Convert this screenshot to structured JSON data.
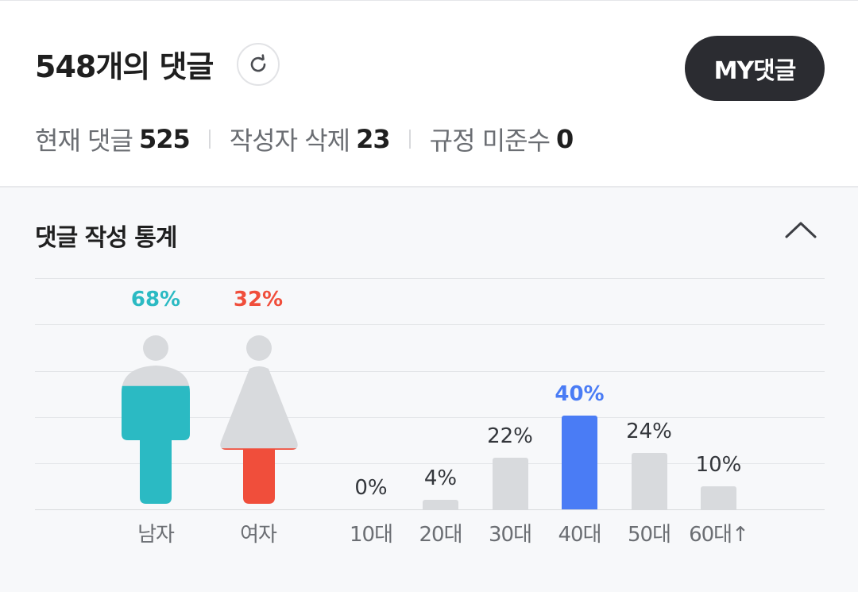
{
  "header": {
    "title": "548개의 댓글",
    "my_button": "MY댓글",
    "counts": [
      {
        "label": "현재 댓글",
        "value": "525"
      },
      {
        "label": "작성자 삭제",
        "value": "23"
      },
      {
        "label": "규정 미준수",
        "value": "0"
      }
    ]
  },
  "stats": {
    "title": "댓글 작성 통계",
    "gender": {
      "male": {
        "label": "남자",
        "percent_text": "68%",
        "percent": 68,
        "color": "#2bbac3"
      },
      "female": {
        "label": "여자",
        "percent_text": "32%",
        "percent": 32,
        "color": "#f04e3b"
      }
    }
  },
  "chart_data": {
    "type": "bar",
    "categories": [
      "10대",
      "20대",
      "30대",
      "40대",
      "50대",
      "60대↑"
    ],
    "values": [
      0,
      4,
      22,
      40,
      24,
      10
    ],
    "value_labels": [
      "0%",
      "4%",
      "22%",
      "40%",
      "24%",
      "10%"
    ],
    "highlight_index": 3,
    "highlight_color": "#4a7cf5",
    "bar_color": "#d8dadd",
    "ylim": [
      0,
      40
    ]
  }
}
